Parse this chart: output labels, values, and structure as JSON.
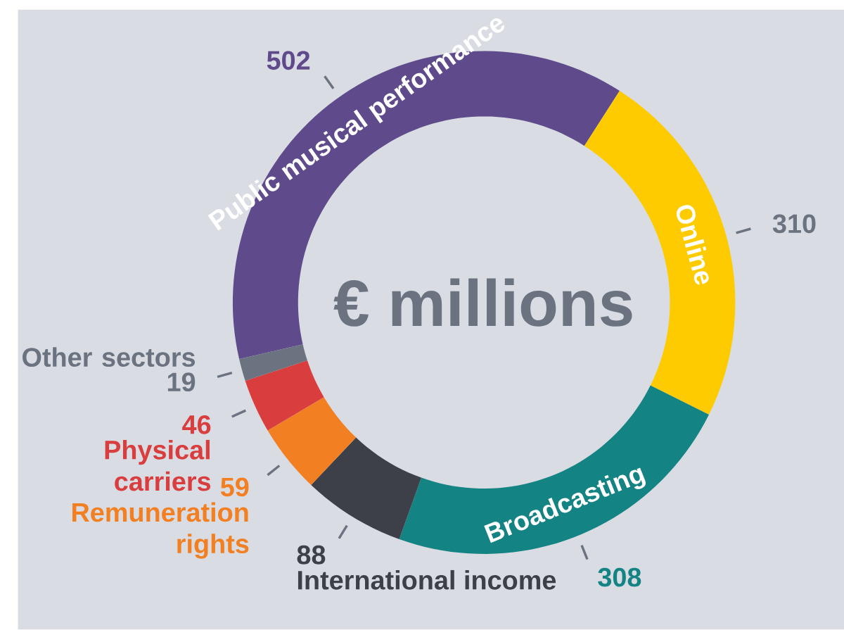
{
  "chart_data": {
    "type": "donut",
    "title": "€ millions",
    "categories": [
      "Public musical performance",
      "Online",
      "Broadcasting",
      "International income",
      "Remuneration rights",
      "Physical carriers",
      "Other sectors"
    ],
    "values": [
      502,
      310,
      308,
      88,
      59,
      46,
      19
    ],
    "colors": [
      "#5f4b8b",
      "#fecb00",
      "#148383",
      "#3d4049",
      "#f28022",
      "#d93d3d",
      "#6b7280"
    ],
    "data_labels": true
  }
}
